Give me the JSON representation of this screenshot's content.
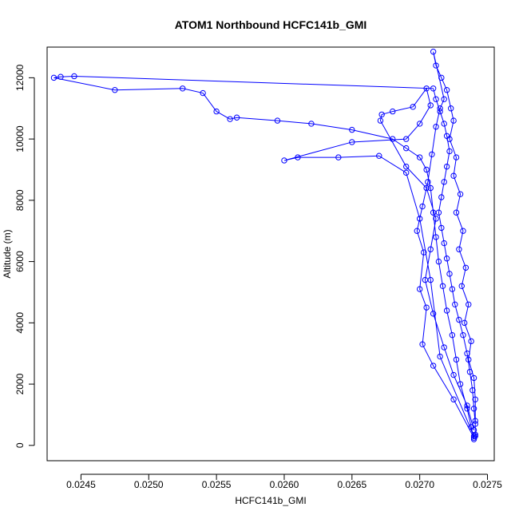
{
  "chart_data": {
    "type": "line",
    "title": "ATOM1 Northbound HCFC141b_GMI",
    "xlabel": "HCFC141b_GMI",
    "ylabel": "Altitude (m)",
    "xlim": [
      0.02425,
      0.02755
    ],
    "ylim": [
      -500,
      13000
    ],
    "x_ticks": [
      0.0245,
      0.025,
      0.0255,
      0.026,
      0.0265,
      0.027,
      0.0275
    ],
    "x_tick_labels": [
      "0.0245",
      "0.0250",
      "0.0255",
      "0.0260",
      "0.0265",
      "0.0270",
      "0.0275"
    ],
    "y_ticks": [
      0,
      2000,
      4000,
      6000,
      8000,
      10000,
      12000
    ],
    "y_tick_labels": [
      "0",
      "2000",
      "4000",
      "6000",
      "8000",
      "10000",
      "12000"
    ],
    "grid": false,
    "line_color": "#0000ff",
    "marker": "open-circle",
    "series": [
      {
        "name": "",
        "points": [
          [
            0.0274,
            200
          ],
          [
            0.02738,
            600
          ],
          [
            0.02735,
            1200
          ],
          [
            0.0273,
            2000
          ],
          [
            0.02727,
            2800
          ],
          [
            0.02724,
            3600
          ],
          [
            0.0272,
            4400
          ],
          [
            0.02717,
            5200
          ],
          [
            0.02714,
            6000
          ],
          [
            0.02712,
            6800
          ],
          [
            0.0271,
            7600
          ],
          [
            0.02708,
            8400
          ],
          [
            0.02705,
            9000
          ],
          [
            0.027,
            9400
          ],
          [
            0.0269,
            9700
          ],
          [
            0.0268,
            10000
          ],
          [
            0.0265,
            10300
          ],
          [
            0.0262,
            10500
          ],
          [
            0.02595,
            10600
          ],
          [
            0.02565,
            10700
          ],
          [
            0.0256,
            10650
          ],
          [
            0.0255,
            10900
          ],
          [
            0.0254,
            11500
          ],
          [
            0.02525,
            11650
          ],
          [
            0.02475,
            11600
          ],
          [
            0.0243,
            12000
          ],
          [
            0.02435,
            12030
          ],
          [
            0.02445,
            12050
          ],
          [
            0.0271,
            11650
          ],
          [
            0.02712,
            11300
          ],
          [
            0.02715,
            10900
          ],
          [
            0.02718,
            10500
          ],
          [
            0.0272,
            10100
          ],
          [
            0.02722,
            9600
          ],
          [
            0.0272,
            9100
          ],
          [
            0.02718,
            8600
          ],
          [
            0.02716,
            8100
          ],
          [
            0.02714,
            7600
          ],
          [
            0.02716,
            7100
          ],
          [
            0.02718,
            6600
          ],
          [
            0.0272,
            6100
          ],
          [
            0.02722,
            5600
          ],
          [
            0.02724,
            5100
          ],
          [
            0.02726,
            4600
          ],
          [
            0.02729,
            4100
          ],
          [
            0.02732,
            3600
          ],
          [
            0.02735,
            3000
          ],
          [
            0.02737,
            2400
          ],
          [
            0.02739,
            1800
          ],
          [
            0.0274,
            1200
          ],
          [
            0.02741,
            700
          ],
          [
            0.02741,
            300
          ],
          [
            0.0274,
            250
          ],
          [
            0.02725,
            1500
          ],
          [
            0.0271,
            2600
          ],
          [
            0.02702,
            3300
          ],
          [
            0.02705,
            4500
          ],
          [
            0.027,
            5100
          ],
          [
            0.02703,
            6300
          ],
          [
            0.02698,
            7000
          ],
          [
            0.02702,
            7800
          ],
          [
            0.02706,
            8600
          ],
          [
            0.02709,
            9500
          ],
          [
            0.02712,
            10400
          ],
          [
            0.02715,
            11000
          ],
          [
            0.02718,
            11300
          ],
          [
            0.0271,
            12850
          ],
          [
            0.02712,
            12400
          ],
          [
            0.02716,
            12000
          ],
          [
            0.0272,
            11600
          ],
          [
            0.02723,
            11000
          ],
          [
            0.02725,
            10600
          ],
          [
            0.02722,
            10000
          ],
          [
            0.02727,
            9400
          ],
          [
            0.02725,
            8800
          ],
          [
            0.0273,
            8200
          ],
          [
            0.02727,
            7600
          ],
          [
            0.02732,
            7000
          ],
          [
            0.02729,
            6400
          ],
          [
            0.02734,
            5800
          ],
          [
            0.02731,
            5200
          ],
          [
            0.02736,
            4600
          ],
          [
            0.02733,
            4000
          ],
          [
            0.02738,
            3400
          ],
          [
            0.02736,
            2800
          ],
          [
            0.0274,
            2200
          ],
          [
            0.02741,
            1500
          ],
          [
            0.02741,
            800
          ],
          [
            0.02741,
            350
          ],
          [
            0.0274,
            300
          ],
          [
            0.02715,
            2900
          ],
          [
            0.02708,
            5400
          ],
          [
            0.027,
            7400
          ],
          [
            0.0269,
            8900
          ],
          [
            0.0267,
            9450
          ],
          [
            0.0264,
            9400
          ],
          [
            0.0261,
            9400
          ],
          [
            0.026,
            9300
          ],
          [
            0.0265,
            9900
          ],
          [
            0.0269,
            10000
          ],
          [
            0.027,
            10500
          ],
          [
            0.02708,
            11100
          ],
          [
            0.02705,
            11650
          ],
          [
            0.02695,
            11050
          ],
          [
            0.0268,
            10900
          ],
          [
            0.02672,
            10800
          ],
          [
            0.02671,
            10600
          ],
          [
            0.0269,
            9100
          ],
          [
            0.02705,
            8400
          ],
          [
            0.02712,
            7400
          ],
          [
            0.02708,
            6400
          ],
          [
            0.02704,
            5400
          ],
          [
            0.0271,
            4300
          ],
          [
            0.02718,
            3200
          ],
          [
            0.02725,
            2300
          ],
          [
            0.02735,
            1300
          ],
          [
            0.0274,
            500
          ]
        ]
      }
    ]
  }
}
